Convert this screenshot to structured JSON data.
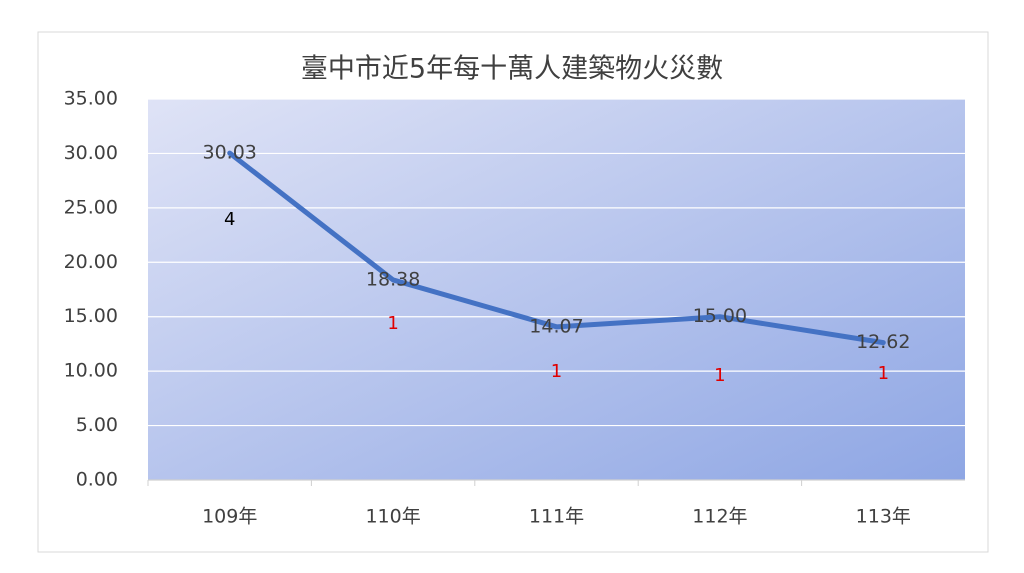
{
  "chart_data": {
    "type": "line",
    "title": "臺中市近5年每十萬人建築物火災數",
    "categories": [
      "109年",
      "110年",
      "111年",
      "112年",
      "113年"
    ],
    "series": [
      {
        "name": "每十萬人建築物火災數",
        "color": "#4472c4",
        "values": [
          30.03,
          18.38,
          14.07,
          15.0,
          12.62
        ],
        "value_labels": [
          "30.03",
          "18.38",
          "14.07",
          "15.00",
          "12.62"
        ]
      }
    ],
    "ylim": [
      0,
      35
    ],
    "yticks": [
      {
        "value": 0,
        "label": "0.00"
      },
      {
        "value": 5,
        "label": "5.00"
      },
      {
        "value": 10,
        "label": "10.00"
      },
      {
        "value": 15,
        "label": "15.00"
      },
      {
        "value": 20,
        "label": "20.00"
      },
      {
        "value": 25,
        "label": "25.00"
      },
      {
        "value": 30,
        "label": "30.00"
      },
      {
        "value": 35,
        "label": "35.00"
      }
    ],
    "grid": true,
    "annotations": [
      {
        "text": "4",
        "color": "#000000"
      },
      {
        "text": "1",
        "color": "#e00000"
      },
      {
        "text": "1",
        "color": "#e00000"
      },
      {
        "text": "1",
        "color": "#e00000"
      },
      {
        "text": "1",
        "color": "#e00000"
      }
    ]
  }
}
